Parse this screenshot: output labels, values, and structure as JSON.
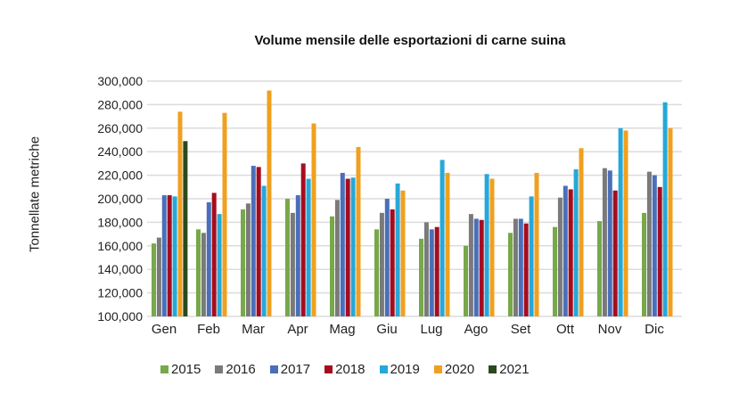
{
  "chart_data": {
    "type": "bar",
    "title": "Volume mensile delle esportazioni di carne suina",
    "xlabel": "",
    "ylabel": "Tonnellate metriche",
    "ylim": [
      100000,
      300000
    ],
    "yticks": [
      "100,000",
      "120,000",
      "140,000",
      "160,000",
      "180,000",
      "200,000",
      "220,000",
      "240,000",
      "260,000",
      "280,000",
      "300,000"
    ],
    "grid": true,
    "legend_position": "bottom",
    "categories": [
      "Gen",
      "Feb",
      "Mar",
      "Apr",
      "Mag",
      "Giu",
      "Lug",
      "Ago",
      "Set",
      "Ott",
      "Nov",
      "Dic"
    ],
    "series": [
      {
        "name": "2015",
        "color": "#77a84a",
        "values": [
          162000,
          174000,
          191000,
          200000,
          185000,
          174000,
          166000,
          160000,
          171000,
          176000,
          181000,
          188000
        ]
      },
      {
        "name": "2016",
        "color": "#7a7a7a",
        "values": [
          167000,
          171000,
          196000,
          188000,
          199000,
          188000,
          180000,
          187000,
          183000,
          201000,
          226000,
          223000
        ]
      },
      {
        "name": "2017",
        "color": "#4a6fba",
        "values": [
          203000,
          197000,
          228000,
          203000,
          222000,
          200000,
          174000,
          183000,
          183000,
          211000,
          224000,
          220000
        ]
      },
      {
        "name": "2018",
        "color": "#a50d1f",
        "values": [
          203000,
          205000,
          227000,
          230000,
          217000,
          191000,
          176000,
          182000,
          179000,
          208000,
          207000,
          210000
        ]
      },
      {
        "name": "2019",
        "color": "#26a8d8",
        "values": [
          202000,
          187000,
          211000,
          217000,
          218000,
          213000,
          233000,
          221000,
          202000,
          225000,
          260000,
          282000
        ]
      },
      {
        "name": "2020",
        "color": "#f0a020",
        "values": [
          274000,
          273000,
          292000,
          264000,
          244000,
          207000,
          222000,
          217000,
          222000,
          243000,
          258000,
          260000
        ]
      },
      {
        "name": "2021",
        "color": "#2a4a1e",
        "values": [
          249000,
          null,
          null,
          null,
          null,
          null,
          null,
          null,
          null,
          null,
          null,
          null
        ]
      }
    ]
  }
}
